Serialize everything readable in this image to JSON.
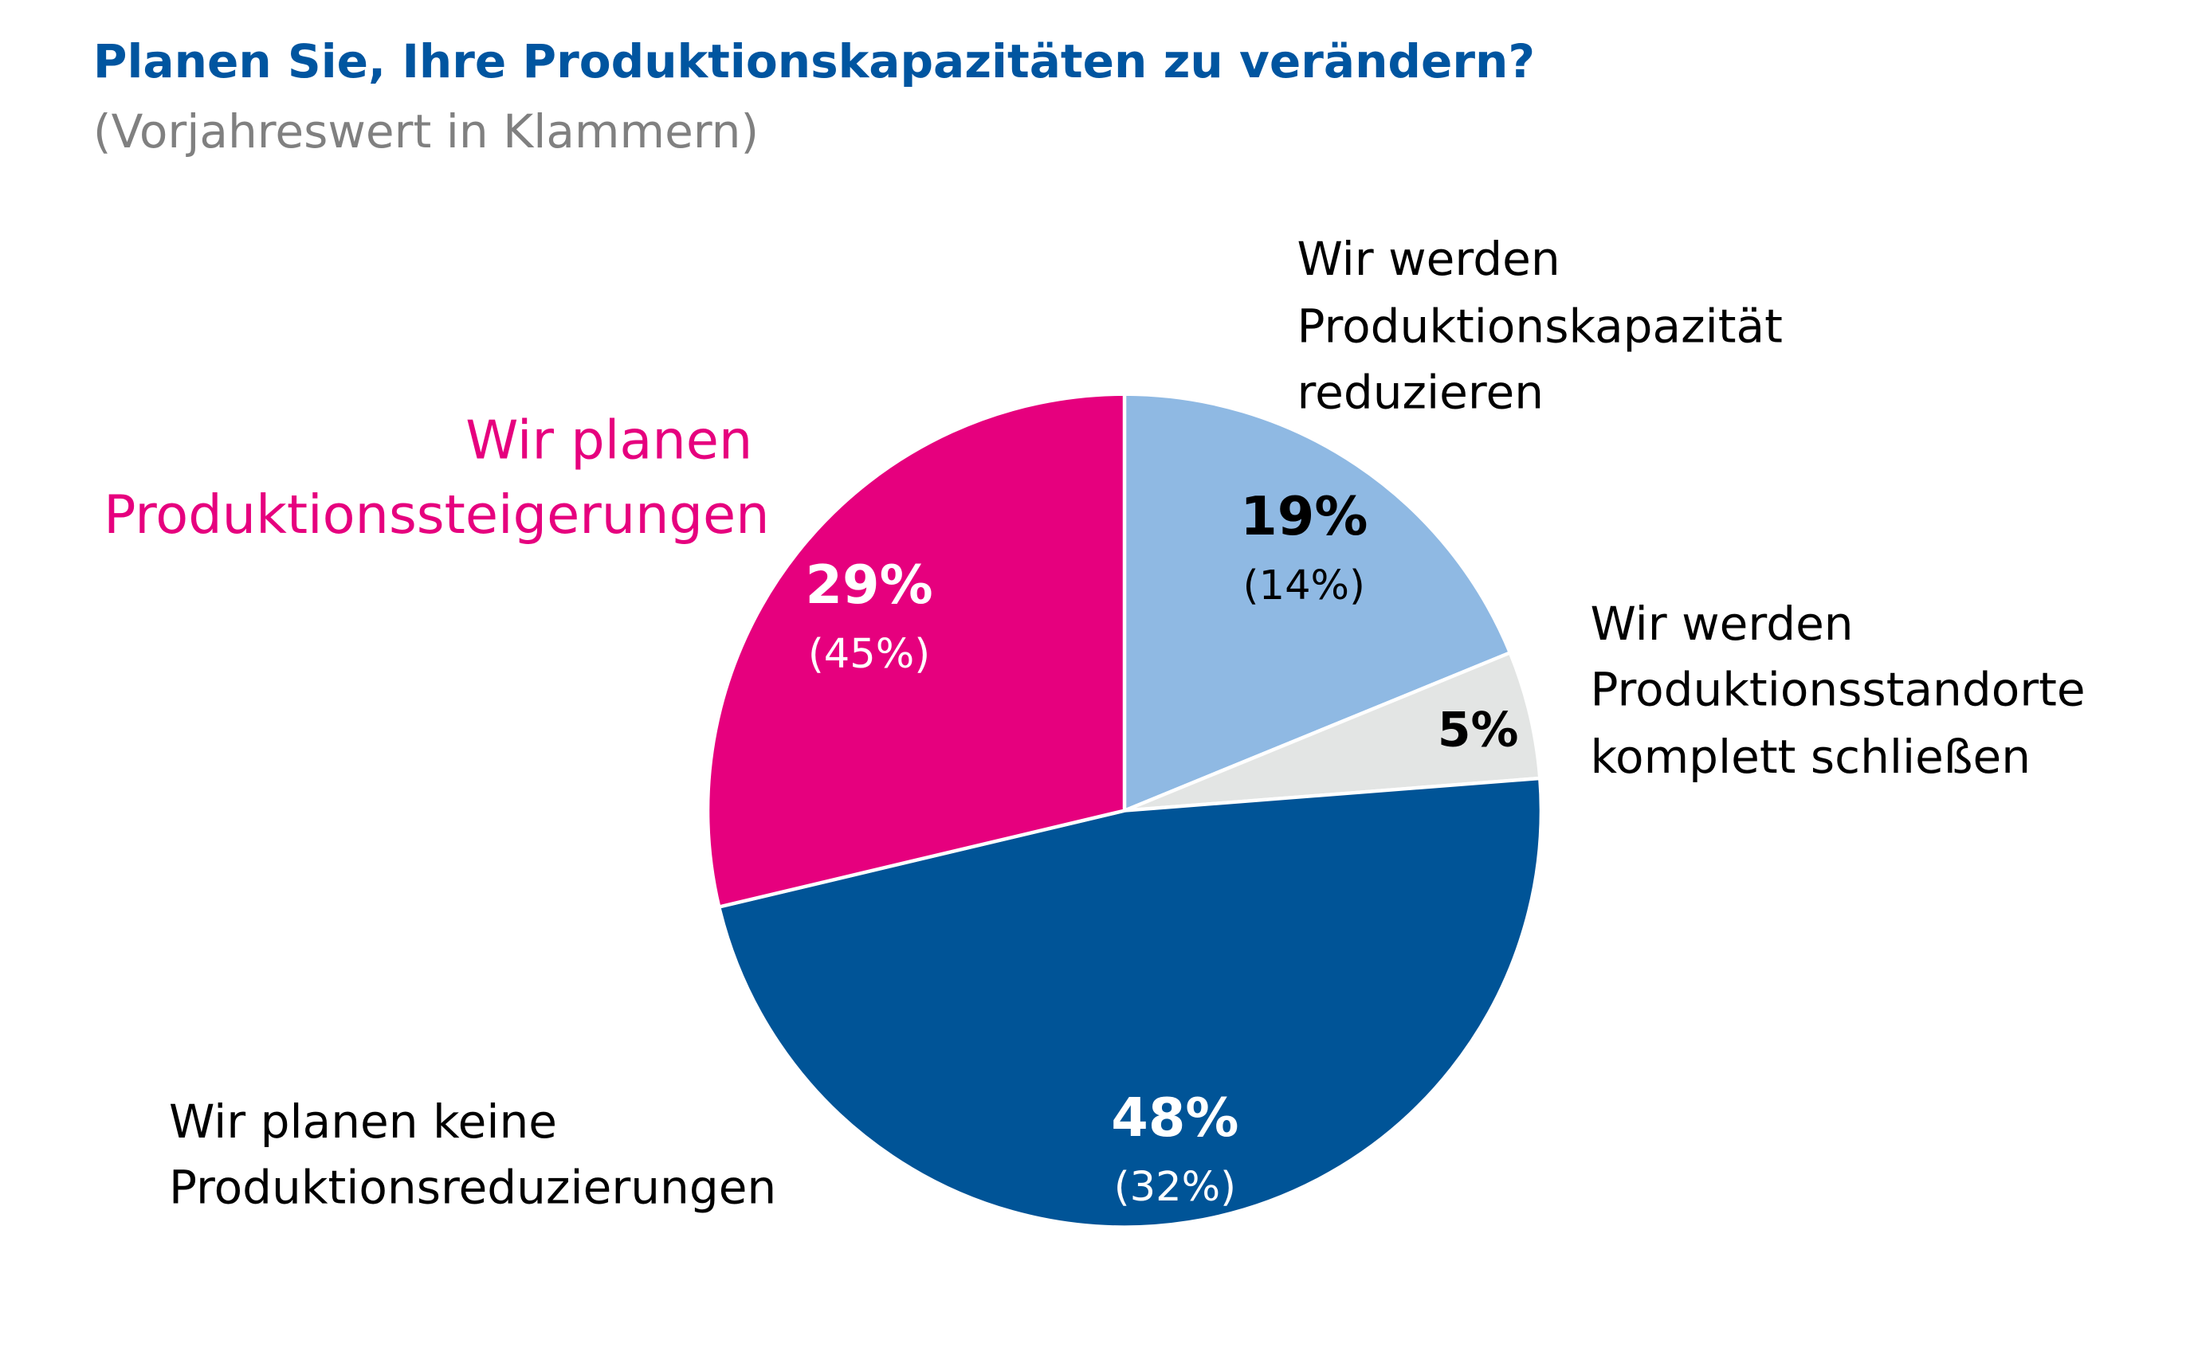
{
  "chart_data": {
    "type": "pie",
    "title": "Planen Sie, Ihre Produktionskapazitäten zu verändern?",
    "subtitle": "(Vorjahreswert in Klammern)",
    "slices": [
      {
        "label_lines": [
          "Wir werden",
          "Produktionskapazität",
          "reduzieren"
        ],
        "value": 19,
        "value_label": "19%",
        "previous": 14,
        "previous_label": "(14%)",
        "color": "#8FB9E3",
        "text_color": "#000000"
      },
      {
        "label_lines": [
          "Wir werden",
          "Produktionsstandorte",
          "komplett schließen"
        ],
        "value": 5,
        "value_label": "5%",
        "color": "#E3E5E4",
        "text_color": "#000000"
      },
      {
        "label_lines": [
          "Wir planen keine",
          "Produktionsreduzierungen"
        ],
        "value": 48,
        "value_label": "48%",
        "previous": 32,
        "previous_label": "(32%)",
        "color": "#005497",
        "text_color": "#FFFFFF"
      },
      {
        "label_lines": [
          "Wir planen",
          "Produktionssteigerungen"
        ],
        "value": 29,
        "value_label": "29%",
        "previous": 45,
        "previous_label": "(45%)",
        "color": "#E6007E",
        "text_color": "#FFFFFF"
      }
    ],
    "start_angle": "12 o'clock",
    "direction": "clockwise",
    "legend": "none"
  },
  "colors": {
    "title": "#0055A0",
    "subtitle": "#808080",
    "label_increase": "#E6007E"
  }
}
